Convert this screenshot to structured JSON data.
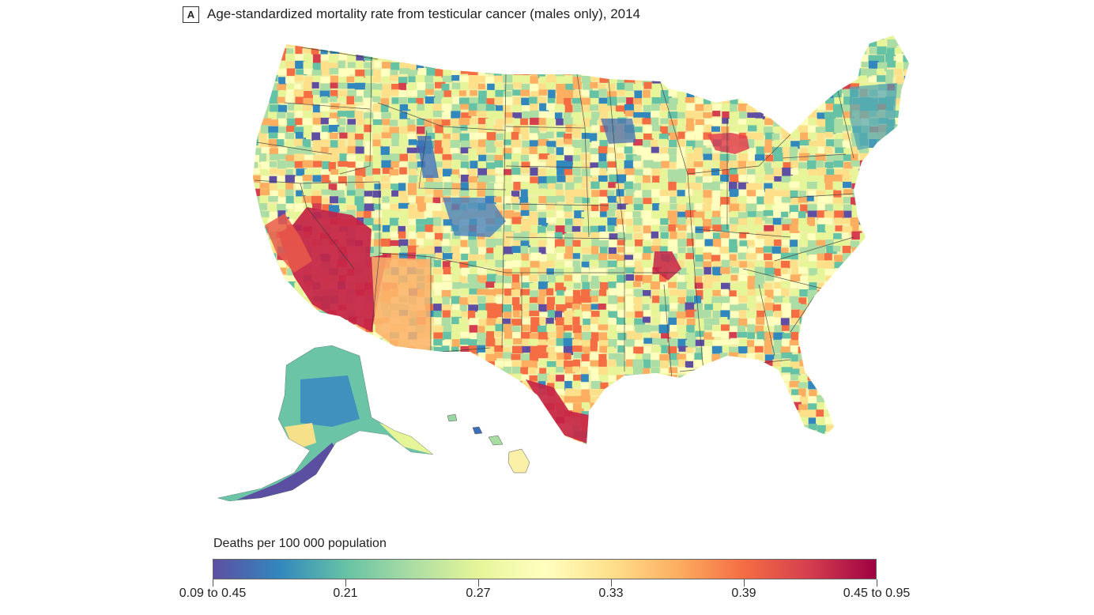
{
  "figure": {
    "panel_label": "A",
    "title": "Age-standardized mortality rate from testicular cancer (males only), 2014"
  },
  "legend": {
    "title": "Deaths per 100 000 population",
    "ticks": [
      "0.09 to 0.45",
      "0.21",
      "0.27",
      "0.33",
      "0.39",
      "0.45 to 0.95"
    ],
    "colors": [
      "#5e4fa2",
      "#3288bd",
      "#66c2a5",
      "#abdda4",
      "#e6f598",
      "#ffffbf",
      "#fee08b",
      "#fdae61",
      "#f46d43",
      "#d53e4f",
      "#9e0142"
    ]
  },
  "map": {
    "region": "United States counties, including Alaska and Hawaii",
    "color_scale": "diverging spectral, purple (low) to dark red (high)",
    "notable_high_areas": [
      "Southern California and Nevada",
      "Arizona",
      "South Texas",
      "Michigan",
      "Southern Illinois"
    ],
    "notable_low_areas": [
      "Colorado",
      "Wyoming",
      "Minnesota",
      "Northeast corridor",
      "Southwest Alaska"
    ]
  }
}
